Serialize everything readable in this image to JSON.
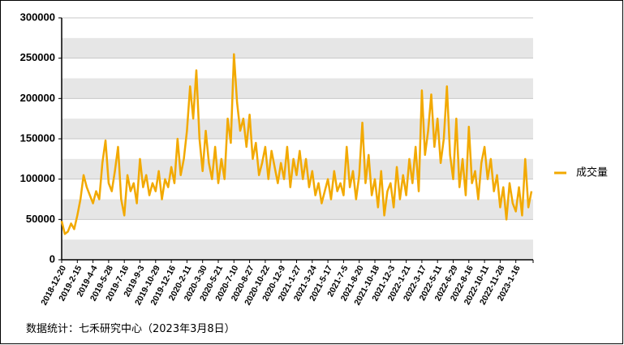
{
  "chart_data": {
    "type": "line",
    "source": "数据统计：七禾研究中心（2023年3月8日）",
    "categories": [
      "2018-12-20",
      null,
      null,
      null,
      null,
      "2019-2-15",
      null,
      null,
      null,
      null,
      "2019-4-4",
      null,
      null,
      null,
      null,
      "2019-5-28",
      null,
      null,
      null,
      null,
      "2019-7-16",
      null,
      null,
      null,
      null,
      "2019-9-3",
      null,
      null,
      null,
      null,
      "2019-10-29",
      null,
      null,
      null,
      null,
      "2019-12-16",
      null,
      null,
      null,
      null,
      "2020-2-11",
      null,
      null,
      null,
      null,
      "2020-3-30",
      null,
      null,
      null,
      null,
      "2020-5-21",
      null,
      null,
      null,
      null,
      "2020-7-10",
      null,
      null,
      null,
      null,
      "2020-8-27",
      null,
      null,
      null,
      null,
      "2020-10-22",
      null,
      null,
      null,
      null,
      "2020-12-9",
      null,
      null,
      null,
      null,
      "2021-1-27",
      null,
      null,
      null,
      null,
      "2021-3-24",
      null,
      null,
      null,
      null,
      "2021-5-17",
      null,
      null,
      null,
      null,
      "2021-7-5",
      null,
      null,
      null,
      null,
      "2021-8-20",
      null,
      null,
      null,
      null,
      "2021-10-18",
      null,
      null,
      null,
      null,
      "2021-12-3",
      null,
      null,
      null,
      null,
      "2022-1-21",
      null,
      null,
      null,
      null,
      "2022-3-17",
      null,
      null,
      null,
      null,
      "2022-5-11",
      null,
      null,
      null,
      null,
      "2022-6-29",
      null,
      null,
      null,
      null,
      "2022-8-16",
      null,
      null,
      null,
      null,
      "2022-10-11",
      null,
      null,
      null,
      null,
      "2022-11-28",
      null,
      null,
      null,
      null,
      "2023-1-16",
      null,
      null,
      null,
      null,
      null
    ],
    "series": [
      {
        "name": "成交量",
        "color": "#f2a900",
        "values": [
          48000,
          32000,
          35000,
          45000,
          38000,
          55000,
          75000,
          105000,
          90000,
          80000,
          70000,
          85000,
          75000,
          120000,
          148000,
          95000,
          85000,
          110000,
          140000,
          75000,
          55000,
          105000,
          85000,
          95000,
          70000,
          125000,
          90000,
          105000,
          80000,
          95000,
          85000,
          110000,
          75000,
          100000,
          90000,
          115000,
          95000,
          150000,
          105000,
          125000,
          160000,
          215000,
          175000,
          235000,
          150000,
          110000,
          160000,
          120000,
          100000,
          140000,
          95000,
          125000,
          100000,
          175000,
          145000,
          255000,
          195000,
          160000,
          175000,
          140000,
          180000,
          125000,
          145000,
          105000,
          120000,
          140000,
          100000,
          135000,
          115000,
          95000,
          120000,
          100000,
          140000,
          90000,
          125000,
          105000,
          135000,
          100000,
          125000,
          90000,
          110000,
          80000,
          95000,
          70000,
          85000,
          100000,
          75000,
          110000,
          85000,
          95000,
          80000,
          140000,
          90000,
          110000,
          75000,
          105000,
          170000,
          95000,
          130000,
          80000,
          100000,
          65000,
          110000,
          55000,
          85000,
          95000,
          65000,
          115000,
          75000,
          105000,
          80000,
          125000,
          95000,
          140000,
          85000,
          210000,
          130000,
          160000,
          205000,
          140000,
          175000,
          120000,
          150000,
          215000,
          130000,
          100000,
          175000,
          90000,
          125000,
          80000,
          165000,
          95000,
          110000,
          75000,
          120000,
          140000,
          100000,
          125000,
          85000,
          105000,
          65000,
          90000,
          50000,
          95000,
          70000,
          60000,
          90000,
          55000,
          125000,
          65000,
          85000
        ]
      }
    ],
    "ylim": [
      0,
      300000
    ],
    "yticks": [
      0,
      50000,
      100000,
      150000,
      200000,
      250000,
      300000
    ],
    "grid": true,
    "legend": "right"
  }
}
